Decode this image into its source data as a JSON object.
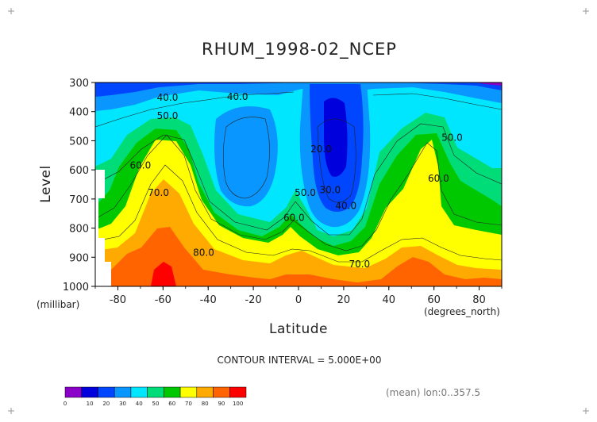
{
  "chart_data": {
    "type": "heatmap",
    "subtype": "filled-contour",
    "title": "RHUM_1998-02_NCEP",
    "xlabel": "Latitude",
    "ylabel": "Level",
    "x_unit_label": "(degrees_north)",
    "y_unit_label": "(millibar)",
    "xlim": [
      -90,
      90
    ],
    "ylim": [
      1000,
      300
    ],
    "x_ticks": [
      -80,
      -60,
      -40,
      -20,
      0,
      20,
      40,
      60,
      80
    ],
    "y_ticks": [
      300,
      400,
      500,
      600,
      700,
      800,
      900,
      1000
    ],
    "contour_interval_text": "CONTOUR INTERVAL = 5.000E+00",
    "footer_note": "(mean) lon:0..357.5",
    "contour_labels": [
      {
        "text": "40.0",
        "x": -58,
        "y": 363
      },
      {
        "text": "40.0",
        "x": -27,
        "y": 360
      },
      {
        "text": "50.0",
        "x": -58,
        "y": 425
      },
      {
        "text": "60.0",
        "x": -70,
        "y": 595
      },
      {
        "text": "70.0",
        "x": -62,
        "y": 690
      },
      {
        "text": "80.0",
        "x": -42,
        "y": 895
      },
      {
        "text": "20.0",
        "x": 10,
        "y": 540
      },
      {
        "text": "30.0",
        "x": 14,
        "y": 680
      },
      {
        "text": "40.0",
        "x": 21,
        "y": 735
      },
      {
        "text": "50.0",
        "x": 3,
        "y": 690
      },
      {
        "text": "60.0",
        "x": -2,
        "y": 775
      },
      {
        "text": "70.0",
        "x": 27,
        "y": 935
      },
      {
        "text": "60.0",
        "x": 62,
        "y": 640
      },
      {
        "text": "50.0",
        "x": 68,
        "y": 500
      }
    ],
    "colorbar": {
      "ticks": [
        "0",
        "10",
        "20",
        "30",
        "40",
        "50",
        "60",
        "70",
        "80",
        "90",
        "100"
      ],
      "colors": [
        "#8a00c8",
        "#0000dc",
        "#0046ff",
        "#0a96ff",
        "#00e6ff",
        "#00dc78",
        "#00c800",
        "#ffff00",
        "#ffaa00",
        "#ff6400",
        "#ff0000"
      ]
    }
  }
}
